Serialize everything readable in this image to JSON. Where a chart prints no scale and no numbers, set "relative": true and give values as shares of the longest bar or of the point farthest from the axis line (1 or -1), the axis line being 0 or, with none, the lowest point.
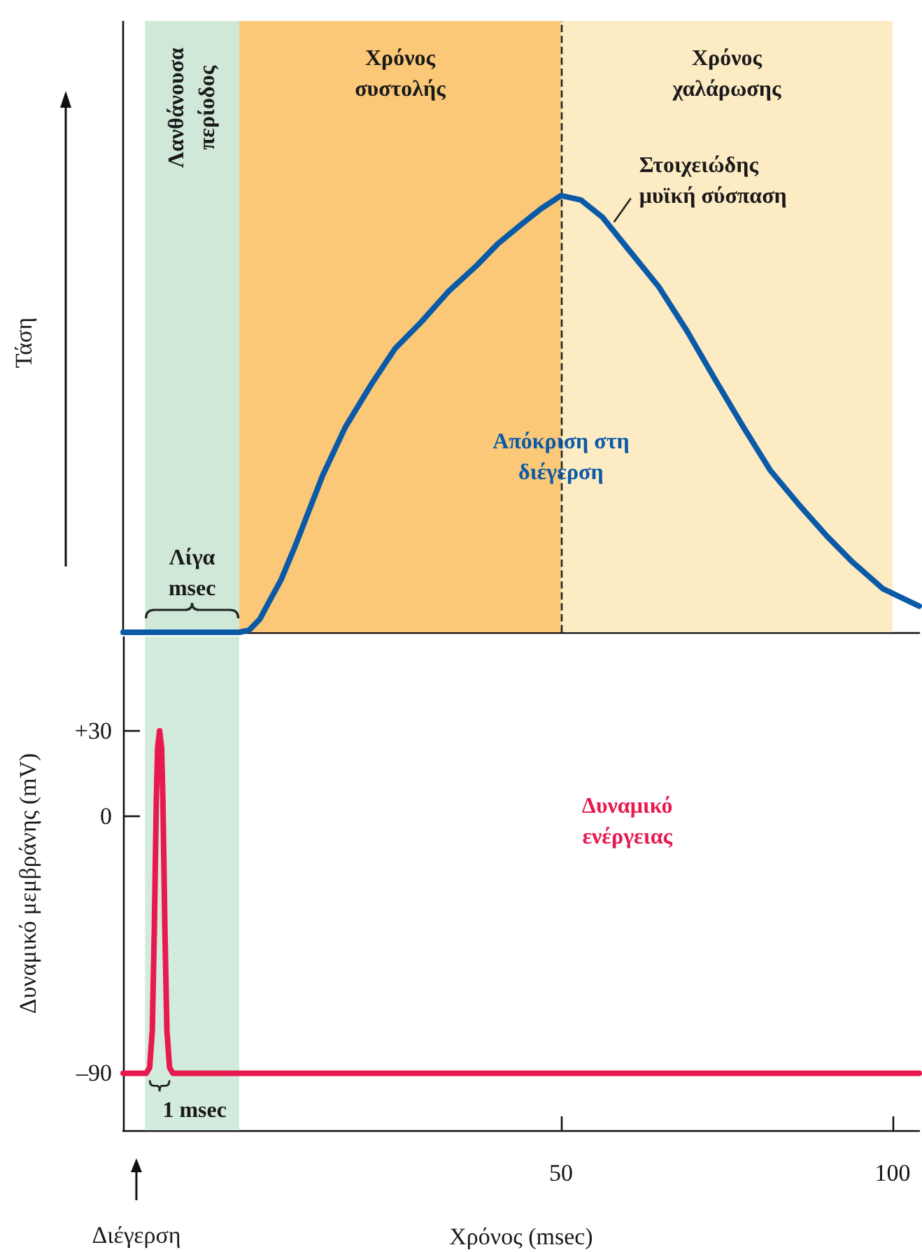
{
  "chart_data": [
    {
      "type": "line",
      "relative": true,
      "ylabel": "Τάση",
      "xlim": [
        -16,
        104
      ],
      "series": [
        {
          "name": "Απόκριση στη διέγερση",
          "color": "#0a5aa8",
          "x": [
            -16,
            1.5,
            3,
            4.6,
            6,
            7.8,
            10,
            14.1,
            17.5,
            21.5,
            25,
            28.9,
            33,
            37.3,
            40.5,
            43.7,
            47,
            50,
            53,
            56.3,
            60,
            64.8,
            69,
            73.2,
            77.5,
            81.6,
            86,
            90.1,
            94,
            98.5,
            104
          ],
          "values": [
            0,
            0,
            0.005,
            0.03,
            0.07,
            0.12,
            0.2,
            0.36,
            0.47,
            0.57,
            0.65,
            0.71,
            0.78,
            0.84,
            0.89,
            0.93,
            0.97,
            1,
            0.99,
            0.95,
            0.88,
            0.79,
            0.69,
            0.58,
            0.47,
            0.37,
            0.29,
            0.22,
            0.16,
            0.1,
            0.06
          ]
        }
      ],
      "bands": [
        {
          "axis": "x",
          "from": -12.7,
          "to": 1.5,
          "label": "Λανθάνουσα περίοδος",
          "color": "#cfe8d8"
        },
        {
          "axis": "x",
          "from": 1.5,
          "to": 50,
          "label": "Χρόνος συστολής",
          "color": "#fbc878"
        },
        {
          "axis": "x",
          "from": 50,
          "to": 100,
          "label": "Χρόνος χαλάρωσης",
          "color": "#fdebc4"
        }
      ],
      "ref_lines": [
        {
          "axis": "x",
          "value": 50,
          "color": "#222222",
          "line_style": "dashed"
        }
      ],
      "annotations": [
        "Λίγα msec",
        "Στοιχειώδης μυϊκή σύσπαση"
      ]
    },
    {
      "type": "line",
      "ylabel": "Δυναμικό μεμβράνης (mV)",
      "xlabel": "Χρόνος (msec)",
      "xlim": [
        -16,
        104
      ],
      "xticks": [
        50,
        100
      ],
      "ylim": [
        -110,
        63
      ],
      "yticks": [
        {
          "value": 30,
          "label": "+30"
        },
        0,
        {
          "value": -90,
          "label": "–90"
        }
      ],
      "series": [
        {
          "name": "Δυναμικό ενέργειας",
          "color": "#e8194f",
          "x": [
            -16,
            -12.5,
            -12,
            -11.6,
            -11.3,
            -11,
            -10.8,
            -10.5,
            -10.2,
            -10,
            -9.7,
            -9.4,
            -9,
            -8.5,
            104
          ],
          "values": [
            -90,
            -90,
            -88,
            -75,
            -40,
            5,
            24,
            30,
            24,
            5,
            -40,
            -75,
            -88,
            -90,
            -90
          ]
        }
      ],
      "bands": [
        {
          "axis": "x",
          "from": -12.7,
          "to": 1.5,
          "color": "#d3ebdc"
        }
      ],
      "annotations": [
        "1 msec",
        "Διέγερση"
      ]
    }
  ]
}
